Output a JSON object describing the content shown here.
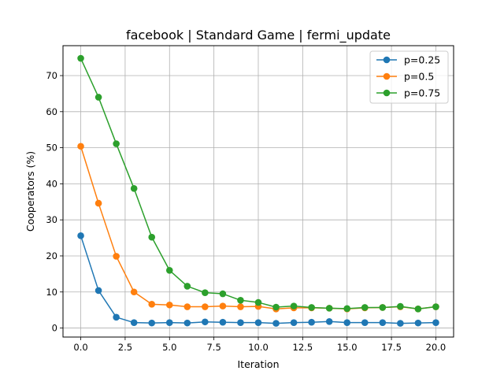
{
  "chart_data": {
    "type": "line",
    "title": "facebook | Standard Game | fermi_update",
    "xlabel": "Iteration",
    "ylabel": "Cooperators (%)",
    "x": [
      0,
      1,
      2,
      3,
      4,
      5,
      6,
      7,
      8,
      9,
      10,
      11,
      12,
      13,
      14,
      15,
      16,
      17,
      18,
      19,
      20
    ],
    "xlim": [
      -1,
      21
    ],
    "ylim": [
      -2.5,
      78.3
    ],
    "xticks": [
      0.0,
      2.5,
      5.0,
      7.5,
      10.0,
      12.5,
      15.0,
      17.5,
      20.0
    ],
    "xtick_labels": [
      "0.0",
      "2.5",
      "5.0",
      "7.5",
      "10.0",
      "12.5",
      "15.0",
      "17.5",
      "20.0"
    ],
    "yticks": [
      0,
      10,
      20,
      30,
      40,
      50,
      60,
      70
    ],
    "ytick_labels": [
      "0",
      "10",
      "20",
      "30",
      "40",
      "50",
      "60",
      "70"
    ],
    "grid": true,
    "legend_position": "top-right",
    "series": [
      {
        "name": "p=0.25",
        "color": "#1f77b4",
        "values": [
          25.6,
          10.4,
          3.0,
          1.5,
          1.4,
          1.5,
          1.4,
          1.7,
          1.6,
          1.5,
          1.5,
          1.3,
          1.5,
          1.6,
          1.8,
          1.5,
          1.5,
          1.5,
          1.3,
          1.4,
          1.5
        ]
      },
      {
        "name": "p=0.5",
        "color": "#ff7f0e",
        "values": [
          50.4,
          34.6,
          19.9,
          10.0,
          6.6,
          6.4,
          5.9,
          5.9,
          6.1,
          5.9,
          6.0,
          5.3,
          5.6,
          5.6,
          5.5,
          5.3,
          5.6,
          5.7,
          5.9,
          5.3,
          5.9
        ]
      },
      {
        "name": "p=0.75",
        "color": "#2ca02c",
        "values": [
          74.8,
          64.0,
          51.1,
          38.7,
          25.2,
          16.0,
          11.6,
          9.8,
          9.5,
          7.7,
          7.1,
          5.8,
          6.1,
          5.7,
          5.5,
          5.4,
          5.7,
          5.7,
          6.0,
          5.3,
          5.9
        ]
      }
    ]
  }
}
